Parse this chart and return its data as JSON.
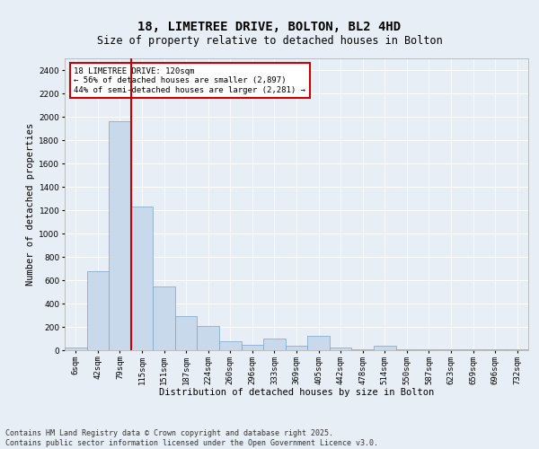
{
  "title1": "18, LIMETREE DRIVE, BOLTON, BL2 4HD",
  "title2": "Size of property relative to detached houses in Bolton",
  "xlabel": "Distribution of detached houses by size in Bolton",
  "ylabel": "Number of detached properties",
  "categories": [
    "6sqm",
    "42sqm",
    "79sqm",
    "115sqm",
    "151sqm",
    "187sqm",
    "224sqm",
    "260sqm",
    "296sqm",
    "333sqm",
    "369sqm",
    "405sqm",
    "442sqm",
    "478sqm",
    "514sqm",
    "550sqm",
    "587sqm",
    "623sqm",
    "659sqm",
    "696sqm",
    "732sqm"
  ],
  "values": [
    20,
    680,
    1960,
    1230,
    550,
    290,
    205,
    80,
    45,
    100,
    35,
    120,
    25,
    10,
    40,
    5,
    5,
    5,
    5,
    5,
    5
  ],
  "bar_color": "#c9d9ec",
  "bar_edge_color": "#7ba3c8",
  "vline_color": "#cc0000",
  "vline_x_index": 3,
  "annotation_text": "18 LIMETREE DRIVE: 120sqm\n← 56% of detached houses are smaller (2,897)\n44% of semi-detached houses are larger (2,281) →",
  "annotation_box_color": "#ffffff",
  "annotation_box_edge": "#cc0000",
  "ylim": [
    0,
    2500
  ],
  "yticks": [
    0,
    200,
    400,
    600,
    800,
    1000,
    1200,
    1400,
    1600,
    1800,
    2000,
    2200,
    2400
  ],
  "footer": "Contains HM Land Registry data © Crown copyright and database right 2025.\nContains public sector information licensed under the Open Government Licence v3.0.",
  "bg_color": "#e8eef5",
  "grid_color": "#ffffff",
  "title_fontsize": 10,
  "subtitle_fontsize": 8.5,
  "axis_label_fontsize": 7.5,
  "tick_fontsize": 6.5,
  "annotation_fontsize": 6.5,
  "footer_fontsize": 6
}
